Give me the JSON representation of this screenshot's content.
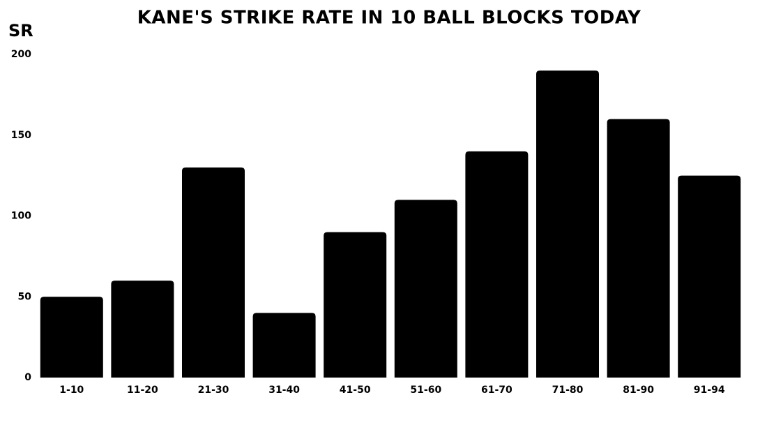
{
  "chart_data": {
    "type": "bar",
    "title": "KANE'S STRIKE RATE IN 10 BALL BLOCKS TODAY",
    "y_label": "SR",
    "categories": [
      "1-10",
      "11-20",
      "21-30",
      "31-40",
      "41-50",
      "51-60",
      "61-70",
      "71-80",
      "81-90",
      "91-94"
    ],
    "values": [
      50,
      60,
      130,
      40,
      90,
      110,
      140,
      190,
      160,
      125
    ],
    "color": "#000000",
    "ylim": [
      0,
      200
    ],
    "yticks": [
      0,
      50,
      100,
      150,
      200
    ],
    "grid": false
  }
}
